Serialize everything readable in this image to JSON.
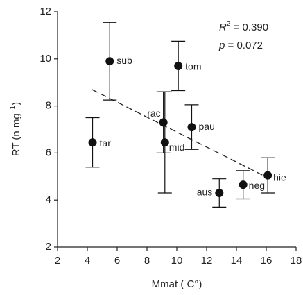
{
  "chart_data": {
    "type": "scatter",
    "title_parts": {
      "r": "R",
      "r_exp": "2",
      "r_rest": " = 0.390",
      "p": "p",
      "p_rest": " = 0.072"
    },
    "x_label": "Mmat  ( C°)",
    "y_label_parts": {
      "main": "RT (n mg",
      "exp": "−1",
      "end": ")"
    },
    "labels": [
      "tar",
      "sub",
      "tom",
      "rac",
      "mid",
      "pau",
      "aus",
      "neg",
      "hie"
    ],
    "x": [
      4.35,
      5.5,
      10.1,
      9.1,
      9.2,
      11.0,
      12.85,
      14.45,
      16.1
    ],
    "values": [
      6.45,
      9.9,
      9.7,
      7.3,
      6.45,
      7.1,
      4.3,
      4.65,
      5.05
    ],
    "errors": [
      1.05,
      1.65,
      1.05,
      1.3,
      2.15,
      0.95,
      0.6,
      0.6,
      0.75
    ],
    "color": "#111111",
    "trend": {
      "x": [
        4.3,
        16.1
      ],
      "y": [
        8.7,
        4.95
      ]
    },
    "xlim": [
      2,
      18
    ],
    "xticks": [
      2,
      4,
      6,
      8,
      10,
      12,
      14,
      16,
      18
    ],
    "ylim": [
      2,
      12
    ],
    "yticks": [
      2,
      4,
      6,
      8,
      10,
      12
    ]
  }
}
